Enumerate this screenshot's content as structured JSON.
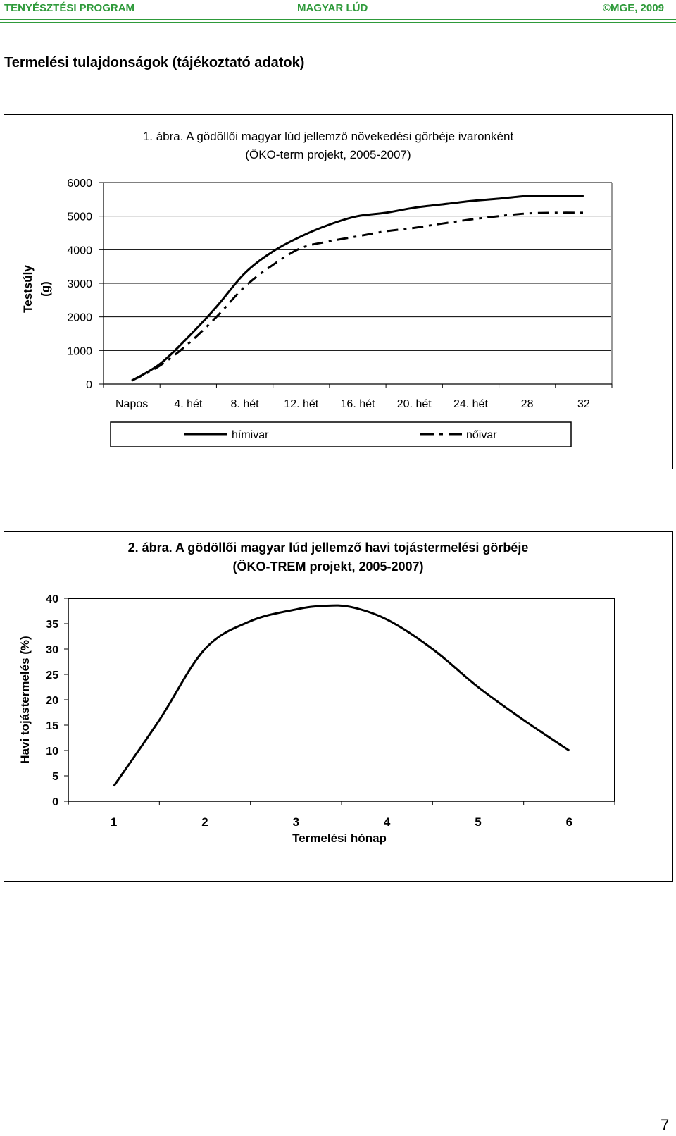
{
  "header": {
    "left": "TENYÉSZTÉSI PROGRAM",
    "center": "MAGYAR LÚD",
    "right": "©MGE, 2009",
    "accent_color": "#2e9a3a"
  },
  "section_title": "Termelési tulajdonságok (tájékoztató adatok)",
  "chart_data": [
    {
      "type": "line",
      "title_line1": "1. ábra. A gödöllői magyar lúd jellemző növekedési görbéje  ivaronként",
      "title_line2": "(ÖKO-term projekt, 2005-2007)",
      "ylabel_line1": "Testsúly",
      "ylabel_line2": "(g)",
      "xlabel": "",
      "ylim": [
        0,
        6000
      ],
      "yticks": [
        "6000",
        "5000",
        "4000",
        "3000",
        "2000",
        "1000",
        "0"
      ],
      "ytick_values": [
        6000,
        5000,
        4000,
        3000,
        2000,
        1000,
        0
      ],
      "categories": [
        "Napos",
        "4. hét",
        "8. hét",
        "12. hét",
        "16. hét",
        "20. hét",
        "24. hét",
        "28",
        "32"
      ],
      "x": [
        0,
        2,
        4,
        6,
        8,
        10,
        12,
        14,
        16,
        18,
        20,
        22,
        24,
        26,
        28,
        30,
        32
      ],
      "series": [
        {
          "name": "hímivar",
          "style": "solid",
          "values": [
            100,
            600,
            1400,
            2300,
            3300,
            3950,
            4400,
            4750,
            5000,
            5100,
            5250,
            5350,
            5450,
            5520,
            5600,
            5600,
            5600
          ]
        },
        {
          "name": "nőivar",
          "style": "dash-dot",
          "values": [
            100,
            550,
            1200,
            2000,
            2900,
            3550,
            4050,
            4250,
            4400,
            4550,
            4650,
            4780,
            4900,
            5000,
            5080,
            5100,
            5100
          ]
        }
      ],
      "legend": [
        "hímivar",
        "nőivar"
      ],
      "legend_position": "bottom"
    },
    {
      "type": "line",
      "title_line1": "2. ábra. A gödöllői magyar lúd jellemző havi tojástermelési görbéje",
      "title_line2": "(ÖKO-TREM projekt, 2005-2007)",
      "ylabel": "Havi tojástermelés (%)",
      "xlabel": "Termelési hónap",
      "ylim": [
        0,
        40
      ],
      "yticks": [
        "40",
        "35",
        "30",
        "25",
        "20",
        "15",
        "10",
        "5",
        "0"
      ],
      "ytick_values": [
        40,
        35,
        30,
        25,
        20,
        15,
        10,
        5,
        0
      ],
      "categories": [
        "1",
        "2",
        "3",
        "4",
        "5",
        "6"
      ],
      "x": [
        1,
        1.5,
        2,
        2.5,
        3,
        3.3,
        3.6,
        4,
        4.5,
        5,
        5.5,
        6
      ],
      "series": [
        {
          "name": "Havi tojástermelés",
          "style": "solid",
          "values": [
            3,
            16,
            30,
            35.5,
            37.8,
            38.5,
            38.3,
            35.8,
            30,
            22.5,
            16,
            10
          ]
        }
      ]
    }
  ],
  "page_number": "7"
}
